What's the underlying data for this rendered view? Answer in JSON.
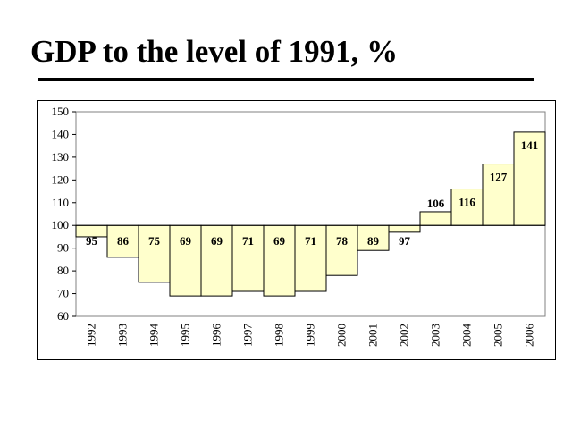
{
  "slide": {
    "title": "GDP to the level of 1991, %"
  },
  "chart_data": {
    "type": "bar",
    "baseline": 100,
    "categories": [
      "1992",
      "1993",
      "1994",
      "1995",
      "1996",
      "1997",
      "1998",
      "1999",
      "2000",
      "2001",
      "2002",
      "2003",
      "2004",
      "2005",
      "2006"
    ],
    "values": [
      95,
      86,
      75,
      69,
      69,
      71,
      69,
      71,
      78,
      89,
      97,
      106,
      116,
      127,
      141
    ],
    "ylim": [
      60,
      150
    ],
    "yticks": [
      60,
      70,
      80,
      90,
      100,
      110,
      120,
      130,
      140,
      150
    ],
    "grid": false,
    "bar_color": "#ffffcc",
    "title": "",
    "xlabel": "",
    "ylabel": ""
  }
}
